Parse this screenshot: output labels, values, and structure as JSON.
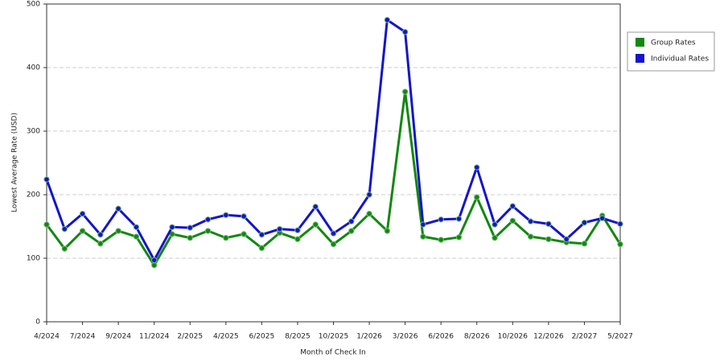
{
  "chart_data": {
    "type": "line",
    "x_label": "Month of Check In",
    "y_label": "Lowest Average Rate (USD)",
    "categories": [
      "4/2024",
      null,
      "7/2024",
      null,
      "9/2024",
      null,
      "11/2024",
      null,
      "2/2025",
      null,
      "4/2025",
      null,
      "6/2025",
      null,
      "8/2025",
      null,
      "10/2025",
      null,
      "1/2026",
      null,
      "3/2026",
      null,
      "6/2026",
      null,
      "8/2026",
      null,
      "10/2026",
      null,
      "12/2026",
      null,
      "2/2027",
      null,
      "5/2027"
    ],
    "series": [
      {
        "name": "Group Rates",
        "color": "#118811",
        "values": [
          153,
          115,
          143,
          123,
          143,
          134,
          89,
          138,
          132,
          143,
          132,
          138,
          116,
          140,
          130,
          153,
          122,
          143,
          170,
          143,
          362,
          134,
          129,
          133,
          196,
          132,
          159,
          134,
          130,
          125,
          123,
          167,
          122
        ]
      },
      {
        "name": "Individual Rates",
        "color": "#1414cc",
        "values": [
          224,
          146,
          170,
          137,
          178,
          149,
          97,
          149,
          148,
          161,
          168,
          166,
          137,
          146,
          144,
          181,
          139,
          158,
          200,
          475,
          456,
          153,
          161,
          162,
          243,
          153,
          182,
          158,
          154,
          130,
          156,
          163,
          154
        ]
      }
    ],
    "ylim": [
      0,
      500
    ],
    "yticks": [
      0,
      100,
      200,
      300,
      400,
      500
    ],
    "grid": true,
    "legend": "right"
  }
}
